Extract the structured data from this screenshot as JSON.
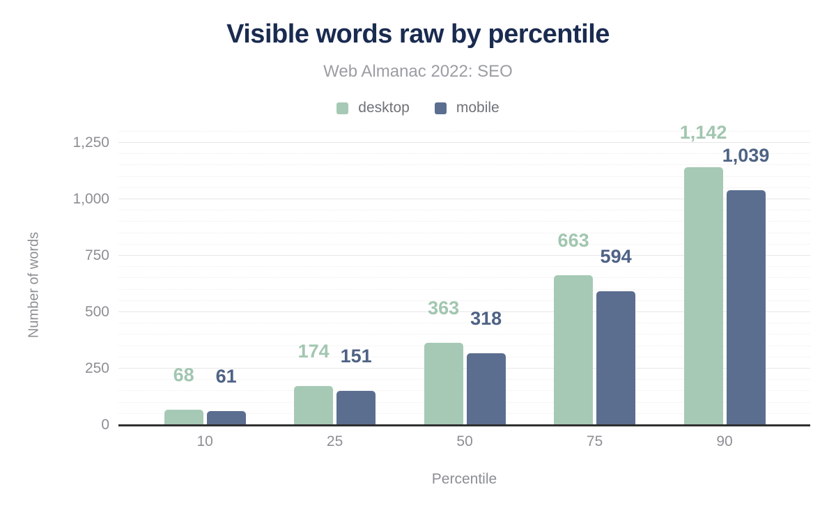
{
  "figure": {
    "title": "Visible words raw by percentile",
    "subtitle": "Web Almanac 2022: SEO"
  },
  "chart_data": {
    "type": "bar",
    "title": "Visible words raw by percentile",
    "subtitle": "Web Almanac 2022: SEO",
    "xlabel": "Percentile",
    "ylabel": "Number of words",
    "categories": [
      "10",
      "25",
      "50",
      "75",
      "90"
    ],
    "series": [
      {
        "name": "desktop",
        "color": "#a6c9b5",
        "label_color": "#a2c6b0",
        "values": [
          68,
          174,
          363,
          663,
          1142
        ],
        "labels": [
          "68",
          "174",
          "363",
          "663",
          "1,142"
        ]
      },
      {
        "name": "mobile",
        "color": "#5b6e90",
        "label_color": "#4e6284",
        "values": [
          61,
          151,
          318,
          594,
          1039
        ],
        "labels": [
          "61",
          "151",
          "318",
          "594",
          "1,039"
        ]
      }
    ],
    "ylim": [
      0,
      1250
    ],
    "y_ticks": [
      {
        "value": 0,
        "label": "0"
      },
      {
        "value": 250,
        "label": "250"
      },
      {
        "value": 500,
        "label": "500"
      },
      {
        "value": 750,
        "label": "750"
      },
      {
        "value": 1000,
        "label": "1,000"
      },
      {
        "value": 1250,
        "label": "1,250"
      }
    ],
    "y_minor_step": 50,
    "grid": "horizontal-major-and-minor",
    "legend_position": "top-center"
  },
  "colors": {
    "title": "#1a2b50",
    "subtitle": "#9a9da2",
    "axis_text": "#8b8e93",
    "legend_text": "#6f7277",
    "baseline": "#2f2f2f",
    "gridline_major": "#e7e7e7",
    "gridline_minor": "#ededed",
    "background": "#ffffff"
  }
}
